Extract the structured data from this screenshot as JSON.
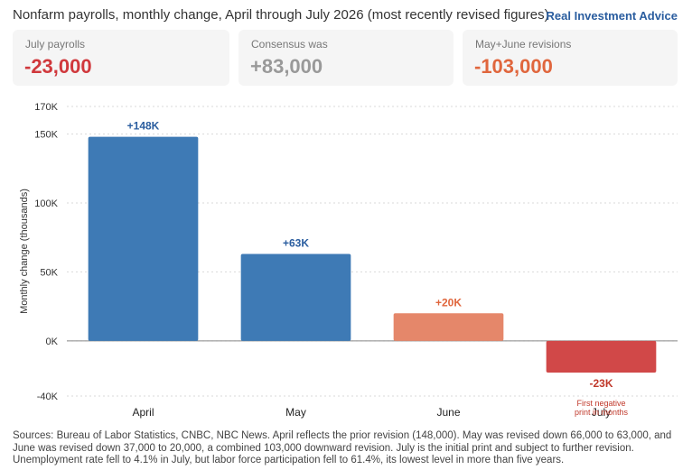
{
  "header": {
    "title": "Nonfarm payrolls, monthly change, April through July 2026 (most recently revised figures)",
    "brand": "Real Investment Advice"
  },
  "cards": [
    {
      "label": "July payrolls",
      "value": "-23,000",
      "color": "#d0383c"
    },
    {
      "label": "Consensus was",
      "value": "+83,000",
      "color": "#999999"
    },
    {
      "label": "May+June revisions",
      "value": "-103,000",
      "color": "#e0663d"
    }
  ],
  "chart_data": {
    "type": "bar",
    "categories": [
      "April",
      "May",
      "June",
      "July"
    ],
    "values": [
      148,
      63,
      20,
      -23
    ],
    "value_labels": [
      "+148K",
      "+63K",
      "+20K",
      "-23K"
    ],
    "bar_colors": [
      "#3e7ab5",
      "#3e7ab5",
      "#e5876a",
      "#d14848"
    ],
    "label_colors": [
      "#2a5d9f",
      "#2a5d9f",
      "#e0663d",
      "#c0392b"
    ],
    "ylabel": "Monthly change (thousands)",
    "ylim": [
      -40,
      170
    ],
    "yticks": [
      -40,
      0,
      50,
      100,
      150,
      170
    ],
    "ytick_labels": [
      "-40K",
      "0K",
      "50K",
      "100K",
      "150K",
      "170K"
    ],
    "grid": true,
    "annotation": {
      "category": "July",
      "text_line1": "First negative",
      "text_line2": "print in months"
    }
  },
  "sources": "Sources: Bureau of Labor Statistics, CNBC, NBC News. April reflects the prior revision (148,000). May was revised down 66,000 to 63,000, and June was revised down 37,000 to 20,000, a combined 103,000 downward revision. July is the initial print and subject to further revision. Unemployment rate fell to 4.1% in July, but labor force participation fell to 61.4%, its lowest level in more than five years."
}
